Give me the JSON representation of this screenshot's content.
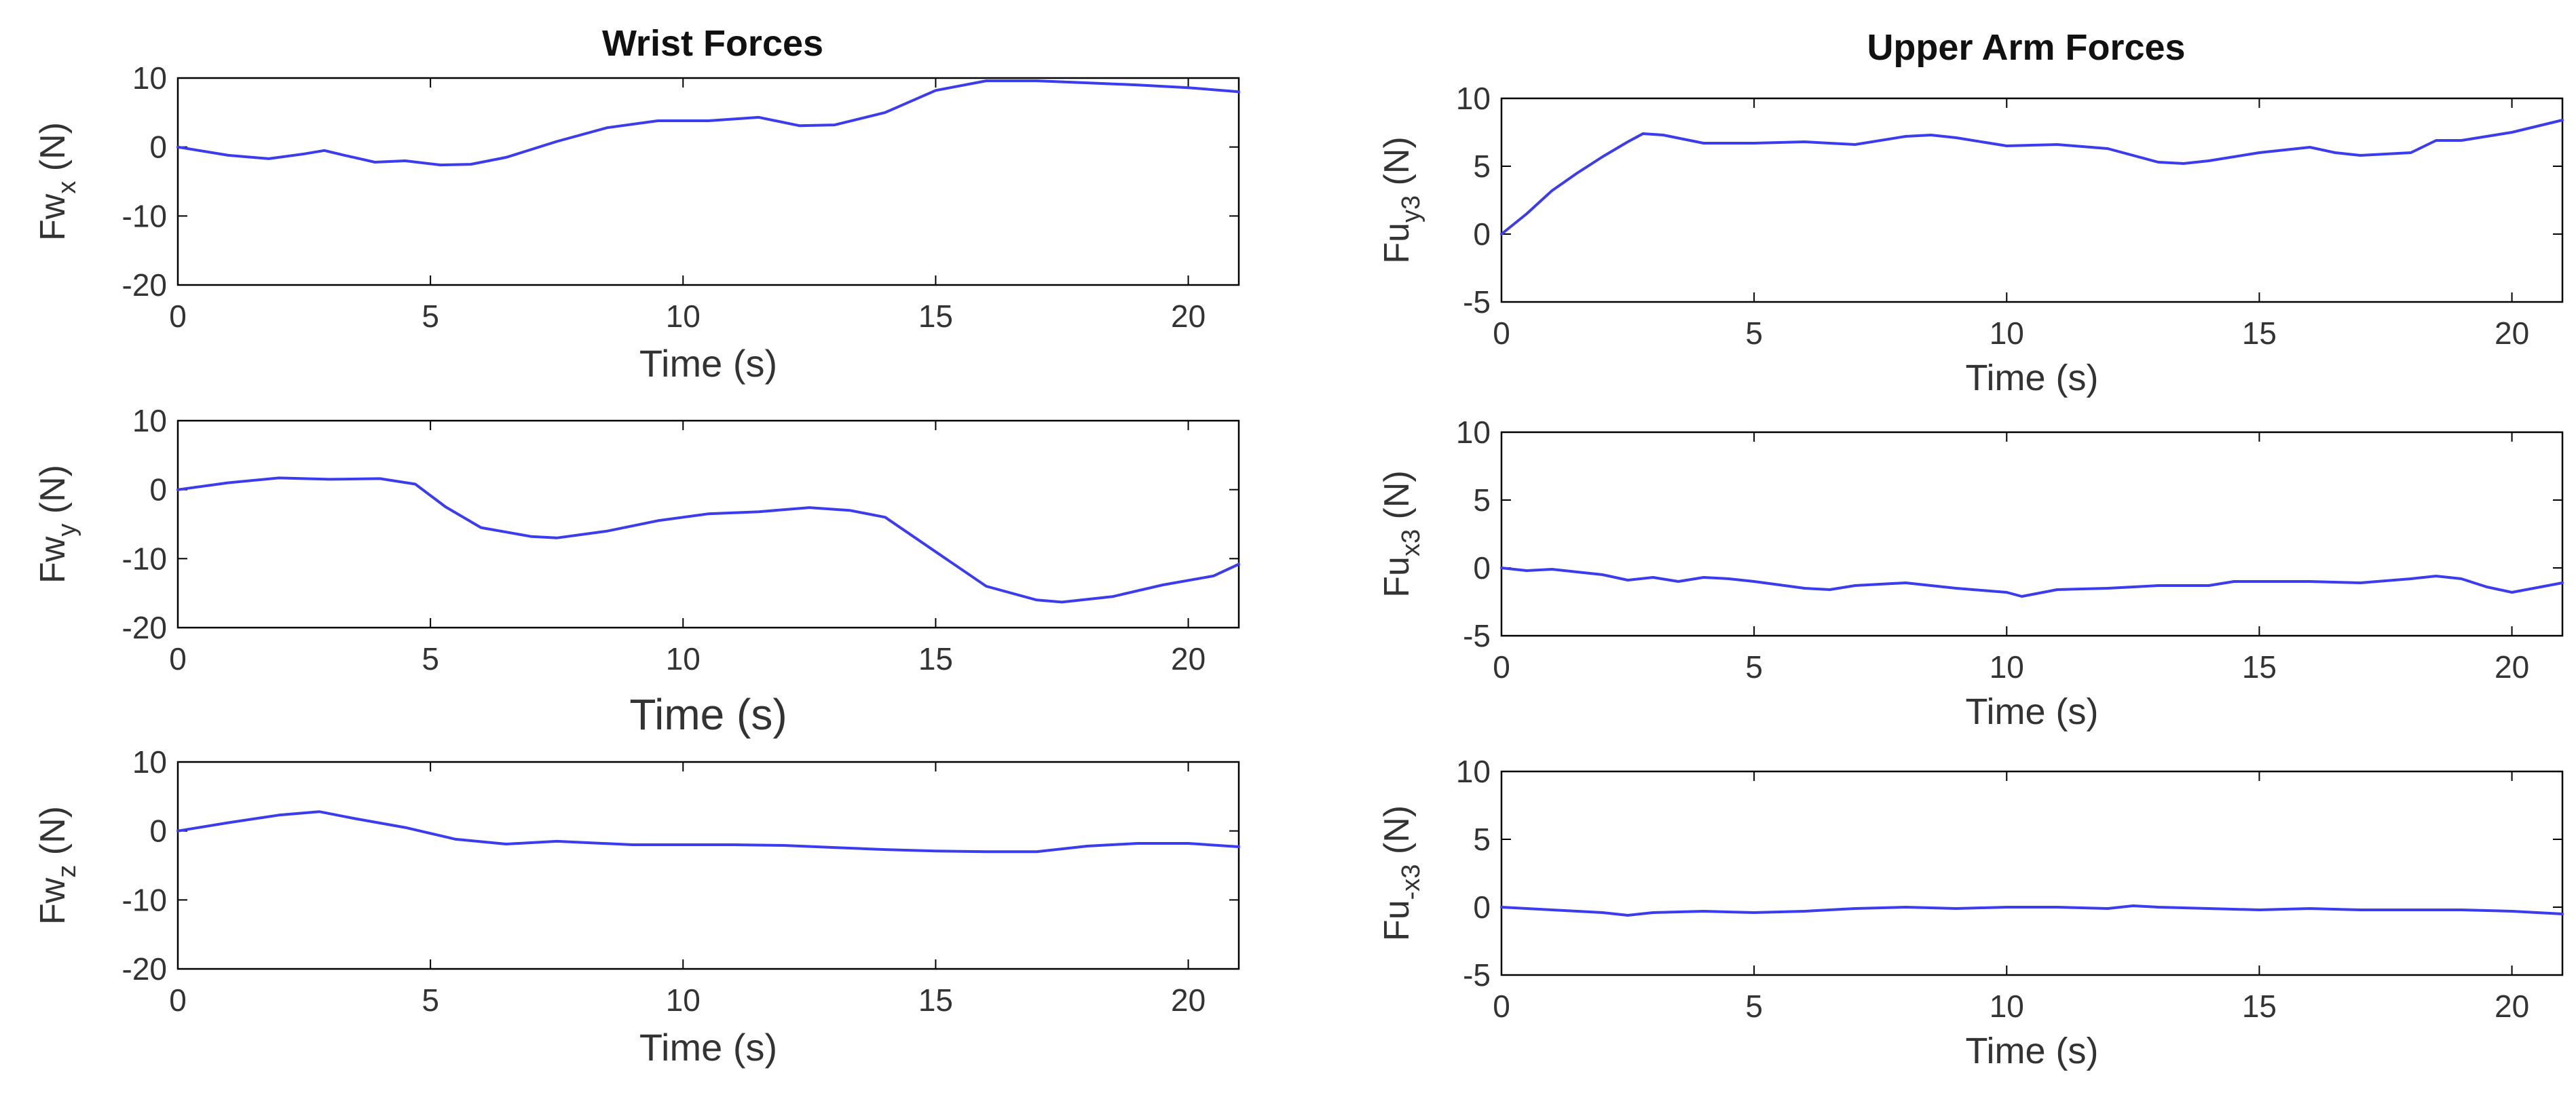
{
  "figure": {
    "left_title": "Wrist Forces",
    "right_title": "Upper Arm Forces"
  },
  "colors": {
    "line": "#3b3bf0",
    "axis": "#000000",
    "text": "#333333"
  },
  "chart_data": [
    {
      "id": "fwx",
      "type": "line",
      "column": "left",
      "row": 0,
      "ylabel": {
        "main": "Fw",
        "sub": "x",
        "unit": "(N)"
      },
      "xlabel": "Time (s)",
      "xlim": [
        0,
        21
      ],
      "ylim": [
        -20,
        10
      ],
      "xticks": [
        0,
        5,
        10,
        15,
        20
      ],
      "yticks": [
        10,
        0,
        -10,
        -20
      ],
      "series": [
        {
          "name": "Fw_x",
          "x": [
            0,
            1,
            1.8,
            2.5,
            2.9,
            3.3,
            3.9,
            4.5,
            5.2,
            5.8,
            6.5,
            7.5,
            8.5,
            9.5,
            10.5,
            11.5,
            12.3,
            13,
            14,
            15,
            16,
            17,
            18,
            19,
            20,
            21
          ],
          "y": [
            0,
            -1.2,
            -1.7,
            -1,
            -0.5,
            -1.2,
            -2.2,
            -2,
            -2.6,
            -2.5,
            -1.5,
            0.8,
            2.8,
            3.8,
            3.8,
            4.3,
            3.1,
            3.2,
            5,
            8.2,
            9.6,
            9.6,
            9.3,
            9,
            8.6,
            8
          ]
        }
      ]
    },
    {
      "id": "fwy",
      "type": "line",
      "column": "left",
      "row": 1,
      "ylabel": {
        "main": "Fw",
        "sub": "y",
        "unit": "(N)"
      },
      "xlabel": "Time (s)",
      "xlim": [
        0,
        21
      ],
      "ylim": [
        -20,
        10
      ],
      "xticks": [
        0,
        5,
        10,
        15,
        20
      ],
      "yticks": [
        10,
        0,
        -10,
        -20
      ],
      "series": [
        {
          "name": "Fw_y",
          "x": [
            0,
            1,
            2,
            3,
            4,
            4.7,
            5.3,
            6,
            7,
            7.5,
            8.5,
            9.5,
            10.5,
            11.5,
            12.5,
            13.3,
            14,
            15,
            16,
            17,
            17.5,
            18.5,
            19.5,
            20.5,
            21
          ],
          "y": [
            0,
            1,
            1.7,
            1.5,
            1.6,
            0.8,
            -2.5,
            -5.5,
            -6.8,
            -7,
            -6,
            -4.5,
            -3.5,
            -3.2,
            -2.6,
            -3,
            -4,
            -9,
            -14,
            -16,
            -16.3,
            -15.5,
            -13.8,
            -12.5,
            -10.8
          ]
        }
      ]
    },
    {
      "id": "fwz",
      "type": "line",
      "column": "left",
      "row": 2,
      "ylabel": {
        "main": "Fw",
        "sub": "z",
        "unit": "(N)"
      },
      "xlabel": "Time (s)",
      "xlim": [
        0,
        21
      ],
      "ylim": [
        -20,
        10
      ],
      "xticks": [
        0,
        5,
        10,
        15,
        20
      ],
      "yticks": [
        10,
        0,
        -10,
        -20
      ],
      "series": [
        {
          "name": "Fw_z",
          "x": [
            0,
            1,
            2,
            2.8,
            3.5,
            4.5,
            5.5,
            6.5,
            7.5,
            9,
            10,
            11,
            12,
            13,
            14,
            15,
            16,
            17,
            18,
            19,
            20,
            21
          ],
          "y": [
            0,
            1.2,
            2.3,
            2.8,
            1.8,
            0.5,
            -1.2,
            -1.9,
            -1.5,
            -2,
            -2,
            -2,
            -2.1,
            -2.4,
            -2.7,
            -2.9,
            -3,
            -3,
            -2.2,
            -1.8,
            -1.8,
            -2.3
          ]
        }
      ]
    },
    {
      "id": "fuy3",
      "type": "line",
      "column": "right",
      "row": 0,
      "ylabel": {
        "main": "Fu",
        "sub": "y3",
        "unit": "(N)"
      },
      "xlabel": "Time (s)",
      "xlim": [
        0,
        21
      ],
      "ylim": [
        -5,
        10
      ],
      "xticks": [
        0,
        5,
        10,
        15,
        20
      ],
      "yticks": [
        10,
        5,
        0,
        -5
      ],
      "series": [
        {
          "name": "Fu_y3",
          "x": [
            0,
            0.5,
            1,
            1.5,
            2,
            2.5,
            2.8,
            3.2,
            3.6,
            4,
            5,
            6,
            7,
            8,
            8.5,
            9,
            10,
            11,
            12,
            13,
            13.5,
            14,
            15,
            16,
            16.5,
            17,
            17.5,
            18,
            18.5,
            19,
            20,
            21
          ],
          "y": [
            0,
            1.5,
            3.2,
            4.5,
            5.7,
            6.8,
            7.4,
            7.3,
            7,
            6.7,
            6.7,
            6.8,
            6.6,
            7.2,
            7.3,
            7.1,
            6.5,
            6.6,
            6.3,
            5.3,
            5.2,
            5.4,
            6,
            6.4,
            6,
            5.8,
            5.9,
            6,
            6.9,
            6.9,
            7.5,
            8.4
          ]
        }
      ]
    },
    {
      "id": "fux3",
      "type": "line",
      "column": "right",
      "row": 1,
      "ylabel": {
        "main": "Fu",
        "sub": "x3",
        "unit": "(N)"
      },
      "xlabel": "Time (s)",
      "xlim": [
        0,
        21
      ],
      "ylim": [
        -5,
        10
      ],
      "xticks": [
        0,
        5,
        10,
        15,
        20
      ],
      "yticks": [
        10,
        5,
        0,
        -5
      ],
      "series": [
        {
          "name": "Fu_x3",
          "x": [
            0,
            0.5,
            1,
            1.5,
            2,
            2.5,
            3,
            3.5,
            4,
            4.5,
            5,
            6,
            6.5,
            7,
            8,
            9,
            10,
            10.3,
            11,
            12,
            13,
            14,
            14.5,
            15,
            16,
            17,
            18,
            18.5,
            19,
            19.5,
            20,
            21
          ],
          "y": [
            0,
            -0.2,
            -0.1,
            -0.3,
            -0.5,
            -0.9,
            -0.7,
            -1,
            -0.7,
            -0.8,
            -1,
            -1.5,
            -1.6,
            -1.3,
            -1.1,
            -1.5,
            -1.8,
            -2.1,
            -1.6,
            -1.5,
            -1.3,
            -1.3,
            -1,
            -1,
            -1,
            -1.1,
            -0.8,
            -0.6,
            -0.8,
            -1.4,
            -1.8,
            -1.1
          ]
        }
      ]
    },
    {
      "id": "fu_x3",
      "type": "line",
      "column": "right",
      "row": 2,
      "ylabel": {
        "main": "Fu",
        "sub": "-x3",
        "unit": "(N)"
      },
      "xlabel": "Time (s)",
      "xlim": [
        0,
        21
      ],
      "ylim": [
        -5,
        10
      ],
      "xticks": [
        0,
        5,
        10,
        15,
        20
      ],
      "yticks": [
        10,
        5,
        0,
        -5
      ],
      "series": [
        {
          "name": "Fu_-x3",
          "x": [
            0,
            1,
            2,
            2.5,
            3,
            4,
            5,
            6,
            7,
            8,
            9,
            10,
            11,
            12,
            12.5,
            13,
            14,
            15,
            16,
            17,
            18,
            19,
            20,
            21
          ],
          "y": [
            0,
            -0.2,
            -0.4,
            -0.6,
            -0.4,
            -0.3,
            -0.4,
            -0.3,
            -0.1,
            0,
            -0.1,
            0,
            0,
            -0.1,
            0.1,
            0,
            -0.1,
            -0.2,
            -0.1,
            -0.2,
            -0.2,
            -0.2,
            -0.3,
            -0.5
          ]
        }
      ]
    }
  ]
}
